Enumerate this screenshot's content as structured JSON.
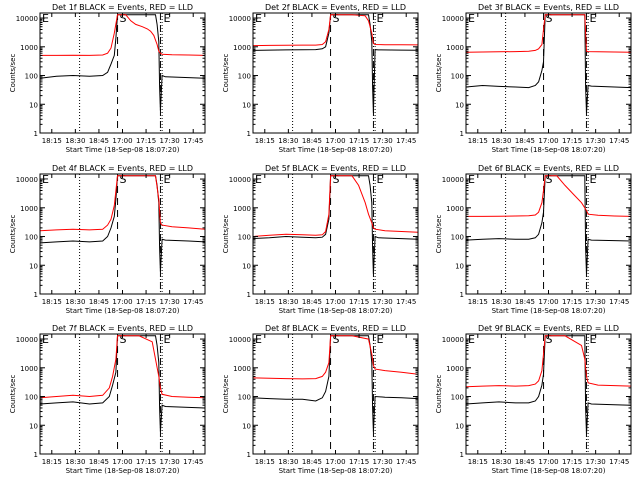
{
  "colors": {
    "events": "#000000",
    "lld": "#ff0000",
    "axis": "#000000"
  },
  "common": {
    "ylabel": "Counts/sec",
    "xlabel": "Start Time (18-Sep-08 18:07:20)",
    "x_tick_labels": [
      "18:15",
      "18:30",
      "18:45",
      "17:00",
      "17:15",
      "17:30",
      "17:45"
    ],
    "y_tick_labels": [
      "1",
      "10",
      "100",
      "1000",
      "10000"
    ],
    "y_log": true,
    "ylim": [
      1,
      15000
    ],
    "xlim": [
      0,
      100
    ],
    "marker_labels": {
      "start": "S",
      "end": "E"
    }
  },
  "chart_data": [
    {
      "type": "line",
      "title": "Det 1f BLACK = Events, RED = LLD",
      "ylabel": "Counts/sec",
      "xlabel": "Start Time (18-Sep-08 18:07:20)",
      "markers": {
        "dotted": [
          24,
          74
        ],
        "start_dash": 47,
        "end_dash": 73
      },
      "series": [
        {
          "name": "Events",
          "x": [
            0,
            10,
            20,
            30,
            38,
            41,
            43,
            45,
            46,
            47,
            60,
            66,
            70,
            71,
            72,
            72.5,
            73,
            74,
            76,
            90,
            100
          ],
          "values": [
            80,
            95,
            100,
            95,
            100,
            130,
            250,
            500,
            2000,
            13000,
            13000,
            13000,
            13000,
            6000,
            1500,
            40,
            6,
            100,
            90,
            85,
            80
          ]
        },
        {
          "name": "LLD",
          "x": [
            0,
            10,
            20,
            30,
            38,
            41,
            43,
            45,
            47,
            52,
            55,
            58,
            62,
            65,
            67,
            69,
            71,
            72,
            73,
            74,
            80,
            90,
            100
          ],
          "values": [
            500,
            500,
            510,
            500,
            520,
            600,
            900,
            3000,
            13000,
            13000,
            8000,
            6000,
            5000,
            4200,
            3500,
            2500,
            1200,
            700,
            600,
            550,
            530,
            520,
            500
          ]
        }
      ]
    },
    {
      "type": "line",
      "title": "Det 2f BLACK = Events, RED = LLD",
      "ylabel": "Counts/sec",
      "xlabel": "Start Time (18-Sep-08 18:07:20)",
      "markers": {
        "dotted": [
          24,
          74
        ],
        "start_dash": 47,
        "end_dash": 73
      },
      "series": [
        {
          "name": "Events",
          "x": [
            0,
            10,
            20,
            30,
            38,
            42,
            44,
            46,
            47,
            60,
            70,
            71,
            72,
            72.5,
            73,
            74,
            76,
            90,
            100
          ],
          "values": [
            750,
            770,
            780,
            790,
            800,
            850,
            1000,
            3000,
            13000,
            13000,
            13000,
            6000,
            1500,
            40,
            5,
            800,
            780,
            770,
            760
          ]
        },
        {
          "name": "LLD",
          "x": [
            0,
            10,
            20,
            30,
            38,
            42,
            44,
            46,
            47,
            60,
            68,
            70,
            72,
            73,
            74,
            80,
            90,
            100
          ],
          "values": [
            1100,
            1120,
            1130,
            1150,
            1150,
            1200,
            1500,
            4000,
            13000,
            13000,
            12000,
            8000,
            3000,
            1300,
            1200,
            1180,
            1170,
            1160
          ]
        }
      ]
    },
    {
      "type": "line",
      "title": "Det 3f BLACK = Events, RED = LLD",
      "ylabel": "Counts/sec",
      "xlabel": "Start Time (18-Sep-08 18:07:20)",
      "markers": {
        "dotted": [
          24,
          74
        ],
        "start_dash": 47,
        "end_dash": 73
      },
      "series": [
        {
          "name": "Events",
          "x": [
            0,
            10,
            20,
            30,
            38,
            42,
            44,
            46,
            47,
            48,
            72,
            72.5,
            73,
            74,
            76,
            90,
            100
          ],
          "values": [
            40,
            45,
            42,
            40,
            38,
            45,
            60,
            150,
            300,
            13000,
            13000,
            40,
            5,
            45,
            43,
            40,
            38
          ]
        },
        {
          "name": "LLD",
          "x": [
            0,
            10,
            20,
            30,
            38,
            42,
            44,
            46,
            47,
            48,
            60,
            72,
            73,
            74,
            80,
            90,
            100
          ],
          "values": [
            650,
            660,
            670,
            680,
            700,
            750,
            850,
            1200,
            4000,
            13000,
            13000,
            13000,
            700,
            680,
            670,
            660,
            650
          ]
        }
      ]
    },
    {
      "type": "line",
      "title": "Det 4f BLACK = Events, RED = LLD",
      "ylabel": "Counts/sec",
      "xlabel": "Start Time (18-Sep-08 18:07:20)",
      "markers": {
        "dotted": [
          24,
          74
        ],
        "start_dash": 47,
        "end_dash": 73
      },
      "series": [
        {
          "name": "Events",
          "x": [
            0,
            10,
            20,
            30,
            38,
            41,
            43,
            45,
            46,
            47,
            60,
            70,
            71,
            72,
            72.5,
            73,
            74,
            76,
            90,
            100
          ],
          "values": [
            60,
            65,
            70,
            65,
            70,
            100,
            200,
            500,
            2000,
            13000,
            13000,
            13000,
            6000,
            1500,
            40,
            6,
            80,
            75,
            70,
            65
          ]
        },
        {
          "name": "LLD",
          "x": [
            0,
            10,
            20,
            30,
            38,
            41,
            43,
            45,
            47,
            60,
            70,
            72,
            73,
            74,
            80,
            90,
            100
          ],
          "values": [
            160,
            170,
            180,
            170,
            180,
            250,
            400,
            1200,
            13000,
            13000,
            13000,
            2000,
            300,
            250,
            220,
            200,
            180
          ]
        }
      ]
    },
    {
      "type": "line",
      "title": "Det 5f BLACK = Events, RED = LLD",
      "ylabel": "Counts/sec",
      "xlabel": "Start Time (18-Sep-08 18:07:20)",
      "markers": {
        "dotted": [
          24,
          74
        ],
        "start_dash": 47,
        "end_dash": 73
      },
      "series": [
        {
          "name": "Events",
          "x": [
            0,
            10,
            20,
            30,
            38,
            42,
            44,
            46,
            47,
            60,
            68,
            70,
            71,
            72,
            72.5,
            73,
            74,
            76,
            90,
            100
          ],
          "values": [
            85,
            90,
            100,
            95,
            90,
            95,
            120,
            400,
            13000,
            13000,
            13000,
            13000,
            6000,
            1500,
            40,
            5,
            100,
            90,
            85,
            80
          ]
        },
        {
          "name": "LLD",
          "x": [
            0,
            10,
            20,
            30,
            38,
            42,
            44,
            46,
            47,
            60,
            64,
            66,
            68,
            70,
            72,
            73,
            74,
            80,
            90,
            100
          ],
          "values": [
            100,
            110,
            120,
            115,
            110,
            115,
            150,
            600,
            13000,
            13000,
            6000,
            3000,
            1500,
            600,
            300,
            200,
            180,
            160,
            150,
            140
          ]
        }
      ]
    },
    {
      "type": "line",
      "title": "Det 6f BLACK = Events, RED = LLD",
      "ylabel": "Counts/sec",
      "xlabel": "Start Time (18-Sep-08 18:07:20)",
      "markers": {
        "dotted": [
          24,
          74
        ],
        "start_dash": 47,
        "end_dash": 73
      },
      "series": [
        {
          "name": "Events",
          "x": [
            0,
            10,
            20,
            30,
            38,
            42,
            44,
            46,
            47,
            48,
            72,
            72.5,
            73,
            74,
            76,
            90,
            100
          ],
          "values": [
            75,
            80,
            85,
            80,
            80,
            90,
            120,
            300,
            700,
            13000,
            13000,
            40,
            5,
            80,
            75,
            72,
            70
          ]
        },
        {
          "name": "LLD",
          "x": [
            0,
            10,
            20,
            30,
            38,
            42,
            44,
            46,
            47,
            48,
            55,
            60,
            65,
            70,
            73,
            74,
            80,
            90,
            100
          ],
          "values": [
            500,
            500,
            510,
            520,
            530,
            560,
            700,
            1500,
            4000,
            13000,
            13000,
            6000,
            3000,
            1500,
            800,
            600,
            550,
            520,
            500
          ]
        }
      ]
    },
    {
      "type": "line",
      "title": "Det 7f BLACK = Events, RED = LLD",
      "ylabel": "Counts/sec",
      "xlabel": "Start Time (18-Sep-08 18:07:20)",
      "markers": {
        "dotted": [
          24,
          74
        ],
        "start_dash": 47,
        "end_dash": 73
      },
      "series": [
        {
          "name": "Events",
          "x": [
            0,
            10,
            20,
            30,
            38,
            42,
            44,
            46,
            47,
            60,
            70,
            71,
            72,
            72.5,
            73,
            74,
            76,
            90,
            100
          ],
          "values": [
            55,
            60,
            65,
            55,
            60,
            100,
            250,
            700,
            13000,
            13000,
            13000,
            6000,
            1500,
            40,
            6,
            50,
            45,
            42,
            40
          ]
        },
        {
          "name": "LLD",
          "x": [
            0,
            10,
            20,
            30,
            38,
            42,
            44,
            46,
            47,
            60,
            68,
            70,
            72,
            73,
            74,
            80,
            90,
            100
          ],
          "values": [
            90,
            100,
            110,
            100,
            110,
            200,
            500,
            2000,
            13000,
            13000,
            8000,
            2000,
            500,
            200,
            120,
            100,
            95,
            90
          ]
        }
      ]
    },
    {
      "type": "line",
      "title": "Det 8f BLACK = Events, RED = LLD",
      "ylabel": "Counts/sec",
      "xlabel": "Start Time (18-Sep-08 18:07:20)",
      "markers": {
        "dotted": [
          24,
          74
        ],
        "start_dash": 47,
        "end_dash": 73
      },
      "series": [
        {
          "name": "Events",
          "x": [
            0,
            10,
            20,
            30,
            38,
            42,
            44,
            46,
            47,
            60,
            70,
            71,
            72,
            72.5,
            73,
            74,
            80,
            90,
            100
          ],
          "values": [
            90,
            85,
            80,
            80,
            70,
            90,
            150,
            500,
            13000,
            13000,
            13000,
            6000,
            1500,
            40,
            6,
            100,
            95,
            90,
            85
          ]
        },
        {
          "name": "LLD",
          "x": [
            0,
            10,
            20,
            30,
            38,
            42,
            44,
            46,
            47,
            60,
            70,
            72,
            73,
            74,
            80,
            90,
            100
          ],
          "values": [
            450,
            430,
            420,
            410,
            420,
            500,
            700,
            1500,
            13000,
            13000,
            10000,
            3000,
            1200,
            900,
            800,
            700,
            600
          ]
        }
      ]
    },
    {
      "type": "line",
      "title": "Det 9f BLACK = Events, RED = LLD",
      "ylabel": "Counts/sec",
      "xlabel": "Start Time (18-Sep-08 18:07:20)",
      "markers": {
        "dotted": [
          24,
          74
        ],
        "start_dash": 47,
        "end_dash": 73
      },
      "series": [
        {
          "name": "Events",
          "x": [
            0,
            10,
            20,
            30,
            38,
            42,
            44,
            46,
            47,
            48,
            72,
            72.5,
            73,
            74,
            76,
            90,
            100
          ],
          "values": [
            55,
            60,
            65,
            60,
            60,
            70,
            100,
            250,
            600,
            13000,
            13000,
            40,
            5,
            60,
            55,
            52,
            50
          ]
        },
        {
          "name": "LLD",
          "x": [
            0,
            10,
            20,
            30,
            38,
            42,
            44,
            46,
            47,
            48,
            60,
            70,
            72,
            73,
            74,
            80,
            90,
            100
          ],
          "values": [
            220,
            230,
            240,
            230,
            240,
            270,
            350,
            800,
            3000,
            13000,
            13000,
            6000,
            2000,
            500,
            300,
            250,
            240,
            230
          ]
        }
      ]
    }
  ]
}
